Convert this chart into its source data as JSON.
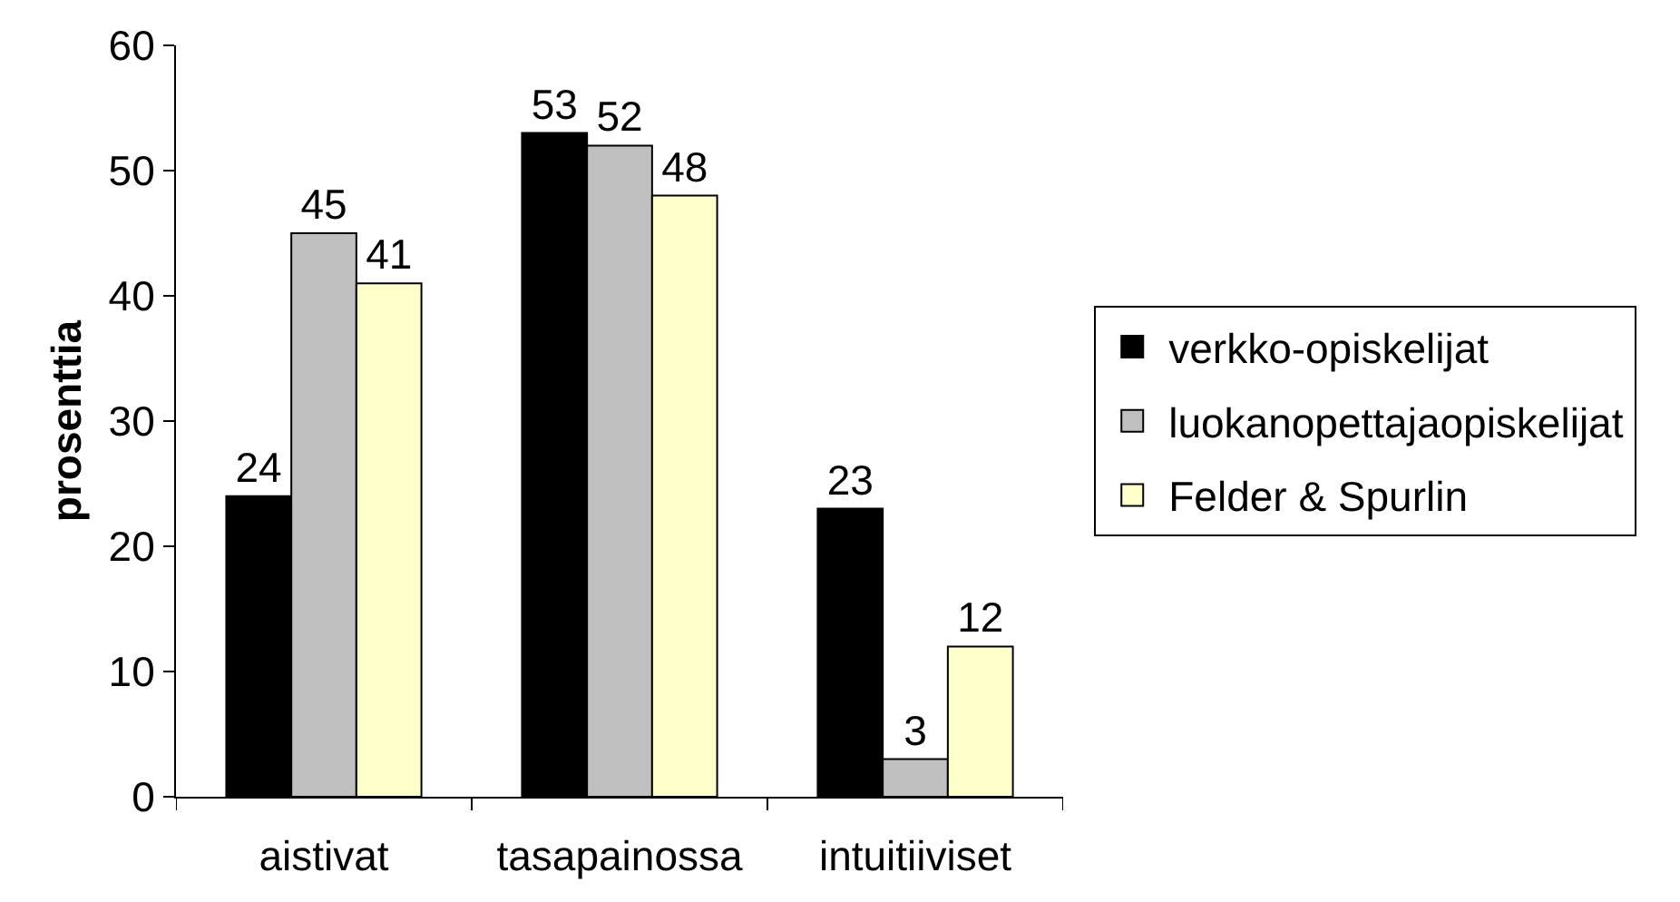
{
  "chart_data": {
    "type": "bar",
    "ylabel": "prosenttia",
    "categories": [
      "aistivat",
      "tasapainossa",
      "intuitiiviset"
    ],
    "series": [
      {
        "name": "verkko-opiskelijat",
        "color": "#000000",
        "values": [
          24,
          53,
          23
        ]
      },
      {
        "name": "luokanopettajaopiskelijat",
        "color": "#c0c0c0",
        "values": [
          45,
          52,
          3
        ]
      },
      {
        "name": "Felder & Spurlin",
        "color": "#ffffcc",
        "values": [
          41,
          48,
          12
        ]
      }
    ],
    "ylim": [
      0,
      60
    ],
    "yticks": [
      0,
      10,
      20,
      30,
      40,
      50,
      60
    ],
    "data_labels": true,
    "legend": "right",
    "grid": false
  }
}
